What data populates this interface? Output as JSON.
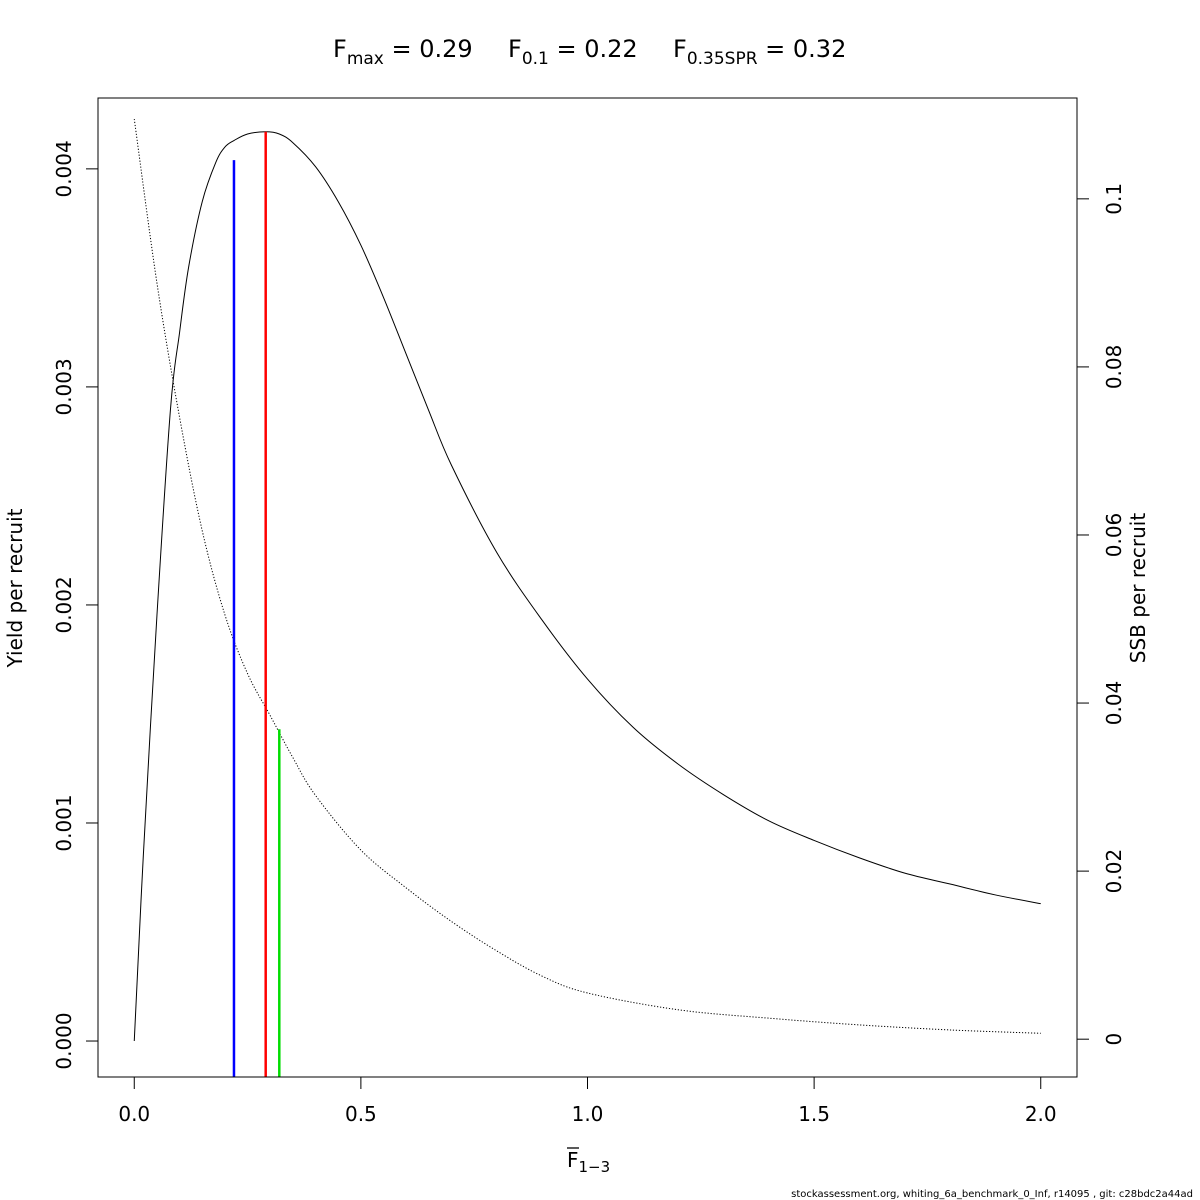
{
  "chart_data": {
    "type": "line",
    "title_parts": {
      "fmax": {
        "main": "F",
        "sub": "max",
        "rest": " = 0.29"
      },
      "f01": {
        "main": "F",
        "sub": "0.1",
        "rest": " = 0.22"
      },
      "fspr": {
        "main": "F",
        "sub": "0.35SPR",
        "rest": " = 0.32"
      }
    },
    "xlabel": {
      "main": "F",
      "sub": "1−3"
    },
    "ylabel": "Yield per recruit",
    "y2label": "SSB per recruit",
    "xlim": [
      -0.08,
      2.08
    ],
    "ylim": [
      -0.000165,
      0.004325
    ],
    "y2lim": [
      -0.0045,
      0.112
    ],
    "x_ticks": [
      0.0,
      0.5,
      1.0,
      1.5,
      2.0
    ],
    "x_tick_labels": [
      "0.0",
      "0.5",
      "1.0",
      "1.5",
      "2.0"
    ],
    "y_ticks": [
      0.0,
      0.001,
      0.002,
      0.003,
      0.004
    ],
    "y_tick_labels": [
      "0.000",
      "0.001",
      "0.002",
      "0.003",
      "0.004"
    ],
    "y2_ticks": [
      0,
      0.02,
      0.04,
      0.06,
      0.08,
      0.1
    ],
    "y2_tick_labels": [
      "0",
      "0.02",
      "0.04",
      "0.06",
      "0.08",
      "0.1"
    ],
    "series": [
      {
        "role": "yield",
        "axis": "left",
        "style": "solid",
        "color": "#000000",
        "x": [
          0.0,
          0.02,
          0.05,
          0.08,
          0.1,
          0.12,
          0.15,
          0.18,
          0.2,
          0.22,
          0.25,
          0.29,
          0.32,
          0.35,
          0.4,
          0.45,
          0.5,
          0.55,
          0.6,
          0.65,
          0.7,
          0.8,
          0.9,
          1.0,
          1.1,
          1.2,
          1.3,
          1.4,
          1.5,
          1.6,
          1.7,
          1.8,
          1.9,
          2.0
        ],
        "y": [
          0.0,
          0.00085,
          0.00195,
          0.0029,
          0.00325,
          0.00355,
          0.00385,
          0.00403,
          0.0041,
          0.00413,
          0.00416,
          0.00417,
          0.00416,
          0.00412,
          0.00401,
          0.00385,
          0.00365,
          0.00341,
          0.00315,
          0.00289,
          0.00264,
          0.00224,
          0.00193,
          0.00166,
          0.00144,
          0.00127,
          0.00113,
          0.00101,
          0.00092,
          0.00084,
          0.00077,
          0.00072,
          0.00067,
          0.00063
        ]
      },
      {
        "role": "ssb",
        "axis": "right",
        "style": "dotted",
        "color": "#000000",
        "x": [
          0.0,
          0.05,
          0.1,
          0.15,
          0.2,
          0.25,
          0.3,
          0.35,
          0.4,
          0.5,
          0.6,
          0.7,
          0.8,
          0.9,
          1.0,
          1.2,
          1.4,
          1.6,
          1.8,
          2.0
        ],
        "y": [
          0.1095,
          0.09,
          0.074,
          0.0605,
          0.0505,
          0.0435,
          0.0385,
          0.0335,
          0.029,
          0.0225,
          0.018,
          0.014,
          0.0105,
          0.0075,
          0.0055,
          0.0035,
          0.0025,
          0.0017,
          0.0011,
          0.0007
        ]
      }
    ],
    "reference_lines": [
      {
        "role": "f01",
        "x": 0.22,
        "y_top": 0.00404,
        "axis": "left",
        "color": "#0000ff"
      },
      {
        "role": "fmax",
        "x": 0.29,
        "y_top": 0.00417,
        "axis": "left",
        "color": "#ff0000"
      },
      {
        "role": "fspr",
        "x": 0.32,
        "y_top": 0.00143,
        "axis": "left",
        "color": "#00dd00"
      }
    ]
  },
  "footer": "stockassessment.org, whiting_6a_benchmark_0_Inf, r14095 , git: c28bdc2a44ad"
}
